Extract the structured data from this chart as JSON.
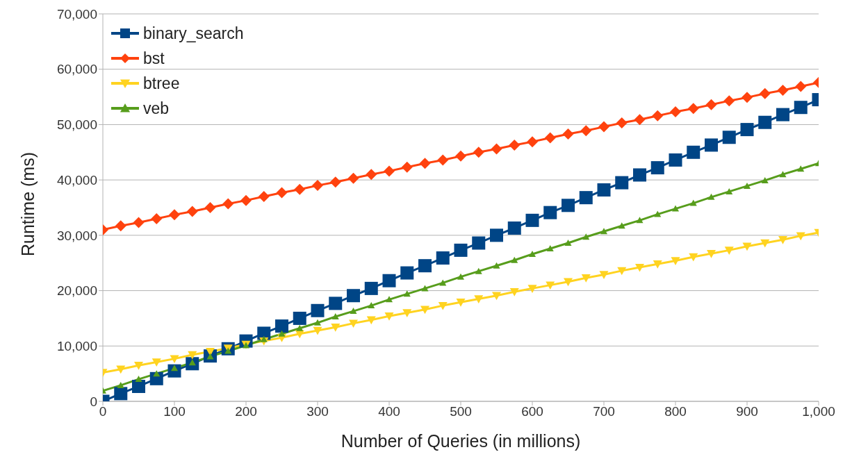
{
  "chart_data": {
    "type": "line",
    "xlabel": "Number of Queries (in millions)",
    "ylabel": "Runtime (ms)",
    "x": [
      0,
      25,
      50,
      75,
      100,
      125,
      150,
      175,
      200,
      225,
      250,
      275,
      300,
      325,
      350,
      375,
      400,
      425,
      450,
      475,
      500,
      525,
      550,
      575,
      600,
      625,
      650,
      675,
      700,
      725,
      750,
      775,
      800,
      825,
      850,
      875,
      900,
      925,
      950,
      975,
      1000
    ],
    "xlim": [
      0,
      1000
    ],
    "xticks": [
      0,
      100,
      200,
      300,
      400,
      500,
      600,
      700,
      800,
      900,
      {
        "value": 1000,
        "label": "1,000"
      }
    ],
    "ylim": [
      0,
      70000
    ],
    "yticks": [
      0,
      {
        "value": 10000,
        "label": "10,000"
      },
      {
        "value": 20000,
        "label": "20,000"
      },
      {
        "value": 30000,
        "label": "30,000"
      },
      {
        "value": 40000,
        "label": "40,000"
      },
      {
        "value": 50000,
        "label": "50,000"
      },
      {
        "value": 60000,
        "label": "60,000"
      },
      {
        "value": 70000,
        "label": "70,000"
      }
    ],
    "grid": "y",
    "legend": "top left",
    "line_style": "solid",
    "series": [
      {
        "name": "binary_search",
        "color": "#004586",
        "marker": "square",
        "values": [
          0,
          1400,
          2700,
          4100,
          5500,
          6800,
          8200,
          9500,
          10900,
          12300,
          13600,
          15000,
          16400,
          17700,
          19100,
          20400,
          21800,
          23200,
          24500,
          25900,
          27300,
          28600,
          30000,
          31300,
          32700,
          34100,
          35400,
          36800,
          38200,
          39500,
          40900,
          42200,
          43600,
          45000,
          46300,
          47700,
          49100,
          50400,
          51800,
          53100,
          54500
        ]
      },
      {
        "name": "bst",
        "color": "#ff420e",
        "marker": "diamond",
        "values": [
          31000,
          31700,
          32300,
          33000,
          33700,
          34300,
          35000,
          35700,
          36300,
          37000,
          37700,
          38300,
          39000,
          39600,
          40300,
          41000,
          41600,
          42300,
          43000,
          43600,
          44300,
          45000,
          45600,
          46300,
          46900,
          47600,
          48300,
          48900,
          49600,
          50300,
          50900,
          51600,
          52300,
          52900,
          53600,
          54300,
          54900,
          55600,
          56200,
          56900,
          57600
        ]
      },
      {
        "name": "btree",
        "color": "#ffd320",
        "marker": "triangle-down",
        "values": [
          5200,
          5800,
          6500,
          7100,
          7700,
          8400,
          9000,
          9600,
          10300,
          10900,
          11500,
          12200,
          12800,
          13400,
          14100,
          14700,
          15400,
          16000,
          16600,
          17300,
          17900,
          18500,
          19100,
          19800,
          20400,
          21000,
          21600,
          22300,
          22900,
          23600,
          24200,
          24800,
          25400,
          26100,
          26700,
          27300,
          28000,
          28600,
          29200,
          29900,
          30500
        ]
      },
      {
        "name": "veb",
        "color": "#579d1c",
        "marker": "triangle",
        "values": [
          1900,
          2900,
          4000,
          5000,
          6000,
          7000,
          8100,
          9100,
          10100,
          11200,
          12200,
          13200,
          14200,
          15300,
          16300,
          17300,
          18400,
          19400,
          20400,
          21400,
          22500,
          23500,
          24500,
          25500,
          26600,
          27600,
          28600,
          29700,
          30700,
          31700,
          32700,
          33800,
          34800,
          35800,
          36900,
          37900,
          38900,
          39900,
          41000,
          42000,
          43000
        ]
      }
    ]
  }
}
